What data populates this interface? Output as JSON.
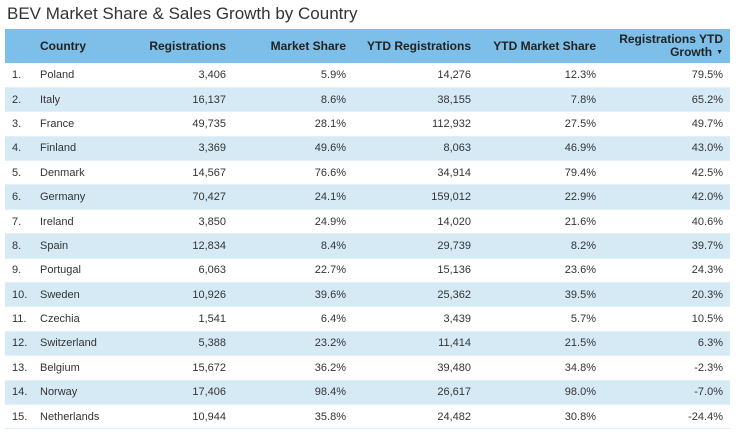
{
  "title": "BEV Market Share & Sales Growth by Country",
  "header": {
    "rank": "",
    "country": "Country",
    "registrations": "Registrations",
    "market_share": "Market Share",
    "ytd_registrations": "YTD Registrations",
    "ytd_market_share": "YTD Market Share",
    "ytd_growth": "Registrations YTD Growth",
    "sort_icon": "sort-descending-icon"
  },
  "colors": {
    "header_bg": "#7dbfe8",
    "alt_row_bg": "#d6eaf6"
  },
  "rows": [
    {
      "rank": "1.",
      "country": "Poland",
      "registrations": "3,406",
      "market_share": "5.9%",
      "ytd_registrations": "14,276",
      "ytd_market_share": "12.3%",
      "ytd_growth": "79.5%"
    },
    {
      "rank": "2.",
      "country": "Italy",
      "registrations": "16,137",
      "market_share": "8.6%",
      "ytd_registrations": "38,155",
      "ytd_market_share": "7.8%",
      "ytd_growth": "65.2%"
    },
    {
      "rank": "3.",
      "country": "France",
      "registrations": "49,735",
      "market_share": "28.1%",
      "ytd_registrations": "112,932",
      "ytd_market_share": "27.5%",
      "ytd_growth": "49.7%"
    },
    {
      "rank": "4.",
      "country": "Finland",
      "registrations": "3,369",
      "market_share": "49.6%",
      "ytd_registrations": "8,063",
      "ytd_market_share": "46.9%",
      "ytd_growth": "43.0%"
    },
    {
      "rank": "5.",
      "country": "Denmark",
      "registrations": "14,567",
      "market_share": "76.6%",
      "ytd_registrations": "34,914",
      "ytd_market_share": "79.4%",
      "ytd_growth": "42.5%"
    },
    {
      "rank": "6.",
      "country": "Germany",
      "registrations": "70,427",
      "market_share": "24.1%",
      "ytd_registrations": "159,012",
      "ytd_market_share": "22.9%",
      "ytd_growth": "42.0%"
    },
    {
      "rank": "7.",
      "country": "Ireland",
      "registrations": "3,850",
      "market_share": "24.9%",
      "ytd_registrations": "14,020",
      "ytd_market_share": "21.6%",
      "ytd_growth": "40.6%"
    },
    {
      "rank": "8.",
      "country": "Spain",
      "registrations": "12,834",
      "market_share": "8.4%",
      "ytd_registrations": "29,739",
      "ytd_market_share": "8.2%",
      "ytd_growth": "39.7%"
    },
    {
      "rank": "9.",
      "country": "Portugal",
      "registrations": "6,063",
      "market_share": "22.7%",
      "ytd_registrations": "15,136",
      "ytd_market_share": "23.6%",
      "ytd_growth": "24.3%"
    },
    {
      "rank": "10.",
      "country": "Sweden",
      "registrations": "10,926",
      "market_share": "39.6%",
      "ytd_registrations": "25,362",
      "ytd_market_share": "39.5%",
      "ytd_growth": "20.3%"
    },
    {
      "rank": "11.",
      "country": "Czechia",
      "registrations": "1,541",
      "market_share": "6.4%",
      "ytd_registrations": "3,439",
      "ytd_market_share": "5.7%",
      "ytd_growth": "10.5%"
    },
    {
      "rank": "12.",
      "country": "Switzerland",
      "registrations": "5,388",
      "market_share": "23.2%",
      "ytd_registrations": "11,414",
      "ytd_market_share": "21.5%",
      "ytd_growth": "6.3%"
    },
    {
      "rank": "13.",
      "country": "Belgium",
      "registrations": "15,672",
      "market_share": "36.2%",
      "ytd_registrations": "39,480",
      "ytd_market_share": "34.8%",
      "ytd_growth": "-2.3%"
    },
    {
      "rank": "14.",
      "country": "Norway",
      "registrations": "17,406",
      "market_share": "98.4%",
      "ytd_registrations": "26,617",
      "ytd_market_share": "98.0%",
      "ytd_growth": "-7.0%"
    },
    {
      "rank": "15.",
      "country": "Netherlands",
      "registrations": "10,944",
      "market_share": "35.8%",
      "ytd_registrations": "24,482",
      "ytd_market_share": "30.8%",
      "ytd_growth": "-24.4%"
    }
  ]
}
